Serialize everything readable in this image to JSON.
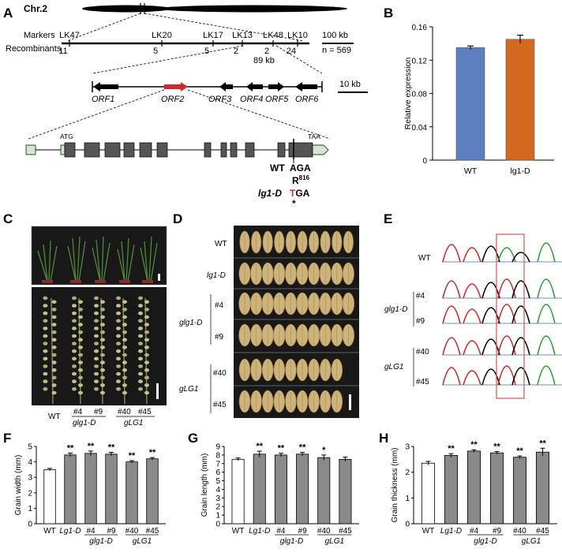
{
  "panel_letters": {
    "a": "A",
    "b": "B",
    "c": "C",
    "d": "D",
    "e": "E",
    "f": "F",
    "g": "G",
    "h": "H"
  },
  "panel_a": {
    "chromosome": "Chr.2",
    "markers_label": "Markers",
    "recombinants_label": "Recombinants",
    "markers": [
      "LK47",
      "LK20",
      "LK17",
      "LK13",
      "LK48",
      "LK10"
    ],
    "recombinants": [
      "11",
      "5",
      "5",
      "2",
      "2",
      "24"
    ],
    "interval": "89 kb",
    "scale_100": "100 kb",
    "n_total": "n = 569",
    "scale_10": "10 kb",
    "orfs": [
      "ORF1",
      "ORF2",
      "ORF3",
      "ORF4",
      "ORF5",
      "ORF6"
    ],
    "atg": "ATG",
    "taa": "TAA",
    "wt_label": "WT",
    "wt_codon": "AGA",
    "residue": "R",
    "residue_num": "816",
    "mut_label": "lg1-D",
    "mut_base": "T",
    "mut_codon_rest": "GA",
    "stop": "*"
  },
  "panel_b": {
    "chart_data": {
      "type": "bar",
      "categories": [
        "WT",
        "lg1-D"
      ],
      "values": [
        0.135,
        0.145
      ],
      "errors": [
        0.002,
        0.005
      ],
      "colors": [
        "#5b7fbf",
        "#d2691e"
      ],
      "ylabel": "Relative expression",
      "ylim": [
        0,
        0.16
      ],
      "yticks": [
        "0",
        "0.04",
        "0.08",
        "0.12",
        "0.16"
      ]
    }
  },
  "panel_c": {
    "labels": [
      "WT",
      "#4",
      "#9",
      "#40",
      "#45"
    ],
    "group1": "glg1-D",
    "group2": "gLG1"
  },
  "panel_d": {
    "rows": [
      "WT",
      "lg1-D",
      "#4",
      "#9",
      "#40",
      "#45"
    ],
    "group1": "glg1-D",
    "group2": "gLG1"
  },
  "panel_e": {
    "rows": [
      "WT",
      "#4",
      "#9",
      "#40",
      "#45"
    ],
    "group1": "glg1-D",
    "group2": "gLG1"
  },
  "bar_charts": [
    {
      "type": "bar",
      "letter": "F",
      "ylabel": "Grain width (mm)",
      "ylim": [
        0,
        5
      ],
      "yticks": [
        "0",
        "1",
        "2",
        "3",
        "4",
        "5"
      ],
      "categories": [
        "WT",
        "Lg1-D",
        "#4",
        "#9",
        "#40",
        "#45"
      ],
      "values": [
        3.5,
        4.45,
        4.55,
        4.5,
        4.0,
        4.2
      ],
      "errors": [
        0.08,
        0.12,
        0.15,
        0.12,
        0.08,
        0.08
      ],
      "stars": [
        "",
        "**",
        "**",
        "**",
        "**",
        "**"
      ],
      "group1": "glg1-D",
      "group2": "gLG1"
    },
    {
      "type": "bar",
      "letter": "G",
      "ylabel": "Grain length (mm)",
      "ylim": [
        0,
        9
      ],
      "yticks": [
        "0",
        "1",
        "2",
        "3",
        "4",
        "5",
        "6",
        "7",
        "8",
        "9"
      ],
      "categories": [
        "WT",
        "Lg1-D",
        "#4",
        "#9",
        "#40",
        "#45"
      ],
      "values": [
        7.5,
        8.1,
        8.0,
        8.1,
        7.7,
        7.5
      ],
      "errors": [
        0.15,
        0.35,
        0.2,
        0.2,
        0.3,
        0.25
      ],
      "stars": [
        "",
        "**",
        "**",
        "**",
        "*",
        ""
      ],
      "group1": "glg1-D",
      "group2": "gLG1"
    },
    {
      "type": "bar",
      "letter": "H",
      "ylabel": "Grain thickness (mm)",
      "ylim": [
        0,
        3
      ],
      "yticks": [
        "0",
        "1",
        "2",
        "3"
      ],
      "categories": [
        "WT",
        "Lg1-D",
        "#4",
        "#9",
        "#40",
        "#45"
      ],
      "values": [
        2.35,
        2.65,
        2.82,
        2.75,
        2.58,
        2.78
      ],
      "errors": [
        0.07,
        0.07,
        0.05,
        0.05,
        0.05,
        0.15
      ],
      "stars": [
        "",
        "**",
        "**",
        "**",
        "**",
        "**"
      ],
      "group1": "glg1-D",
      "group2": "gLG1"
    }
  ]
}
